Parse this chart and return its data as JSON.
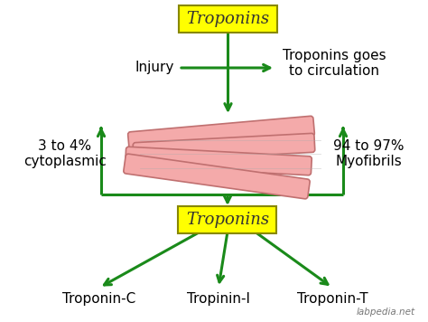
{
  "bg_color": "#ffffff",
  "arrow_color": "#1a8a1a",
  "arrow_lw": 2.2,
  "muscle_fill": "#f4aaaa",
  "muscle_edge": "#c07070",
  "muscle_edge2": "#888888",
  "box_fill": "#ffff00",
  "box_edge": "#888800",
  "title_top": "Troponins",
  "title_bottom": "Troponins",
  "text_injury": "Injury",
  "text_circulation": "Troponins goes\nto circulation",
  "text_left": "3 to 4%\ncytoplasmic",
  "text_right": "94 to 97%\nMyofibrils",
  "text_troponin_c": "Troponin-C",
  "text_troponin_i": "Tropinin-I",
  "text_troponin_t": "Troponin-T",
  "text_watermark": "labpedia.net",
  "main_font_size": 11,
  "title_font_size": 13,
  "fig_w": 4.74,
  "fig_h": 3.56,
  "dpi": 100
}
